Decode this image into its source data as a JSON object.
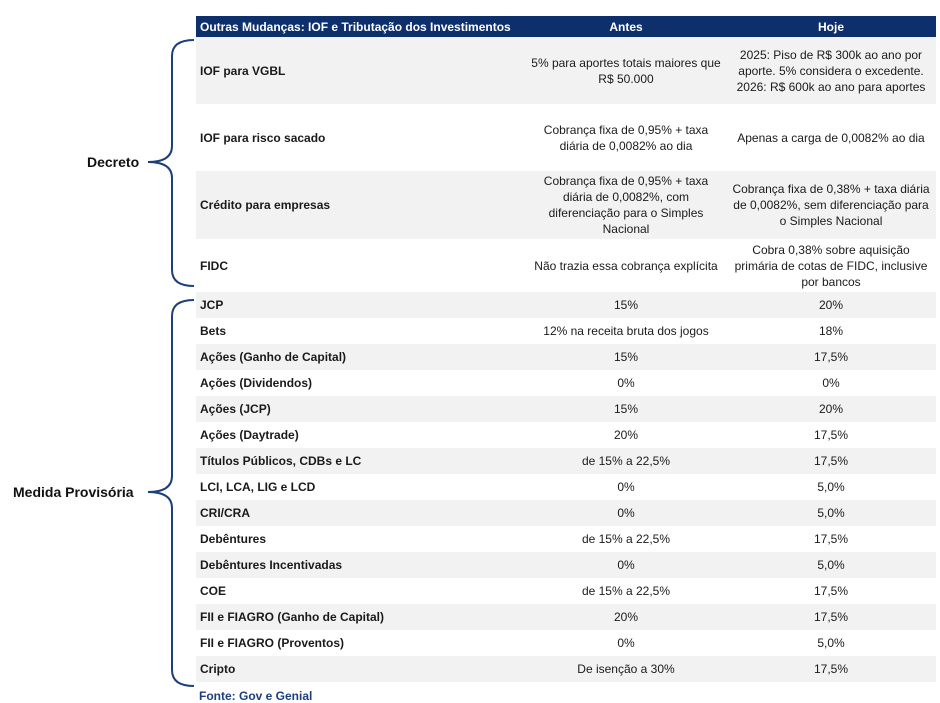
{
  "header": {
    "title": "Outras Mudanças: IOF e Tributação dos Investimentos",
    "col_antes": "Antes",
    "col_hoje": "Hoje"
  },
  "groups": {
    "decreto": "Decreto",
    "medida": "Medida Provisória"
  },
  "rows": [
    {
      "label": "IOF para VGBL",
      "antes": "5% para aportes totais maiores que R$ 50.000",
      "hoje": "2025: Piso de R$ 300k ao ano por aporte. 5% considera o excedente. 2026: R$ 600k ao ano para aportes"
    },
    {
      "label": "IOF para risco sacado",
      "antes": "Cobrança fixa de 0,95% + taxa diária de 0,0082% ao dia",
      "hoje": "Apenas a carga de 0,0082% ao dia"
    },
    {
      "label": "Crédito para empresas",
      "antes": "Cobrança fixa de 0,95% + taxa diária de 0,0082%, com diferenciação para o Simples Nacional",
      "hoje": "Cobrança fixa de 0,38% + taxa diária de 0,0082%, sem diferenciação para o Simples Nacional"
    },
    {
      "label": "FIDC",
      "antes": "Não trazia essa cobrança explícita",
      "hoje": "Cobra 0,38% sobre aquisição primária de cotas de FIDC, inclusive por bancos"
    },
    {
      "label": "JCP",
      "antes": "15%",
      "hoje": "20%"
    },
    {
      "label": "Bets",
      "antes": "12% na receita bruta dos jogos",
      "hoje": "18%"
    },
    {
      "label": "Ações (Ganho de Capital)",
      "antes": "15%",
      "hoje": "17,5%"
    },
    {
      "label": "Ações (Dividendos)",
      "antes": "0%",
      "hoje": "0%"
    },
    {
      "label": "Ações (JCP)",
      "antes": "15%",
      "hoje": "20%"
    },
    {
      "label": "Ações (Daytrade)",
      "antes": "20%",
      "hoje": "17,5%"
    },
    {
      "label": "Títulos Públicos, CDBs e LC",
      "antes": "de 15% a 22,5%",
      "hoje": "17,5%"
    },
    {
      "label": "LCI, LCA, LIG e LCD",
      "antes": "0%",
      "hoje": "5,0%"
    },
    {
      "label": "CRI/CRA",
      "antes": "0%",
      "hoje": "5,0%"
    },
    {
      "label": "Debêntures",
      "antes": "de 15% a 22,5%",
      "hoje": "17,5%"
    },
    {
      "label": "Debêntures Incentivadas",
      "antes": "0%",
      "hoje": "5,0%"
    },
    {
      "label": "COE",
      "antes": "de 15% a 22,5%",
      "hoje": "17,5%"
    },
    {
      "label": "FII e FIAGRO (Ganho de Capital)",
      "antes": "20%",
      "hoje": "17,5%"
    },
    {
      "label": "FII e FIAGRO (Proventos)",
      "antes": "0%",
      "hoje": "5,0%"
    },
    {
      "label": "Cripto",
      "antes": "De isenção a 30%",
      "hoje": "17,5%"
    }
  ],
  "source": "Fonte: Gov e Genial"
}
